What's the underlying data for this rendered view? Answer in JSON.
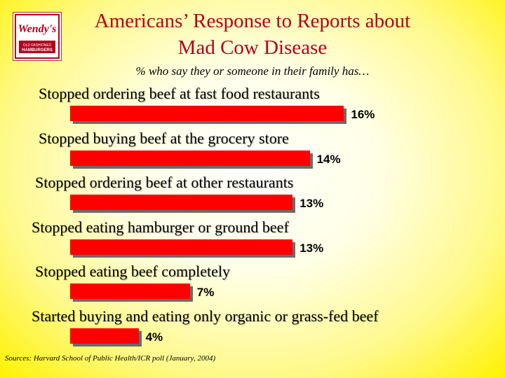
{
  "title_lines": [
    "Americans’ Response to Reports about",
    "Mad Cow Disease"
  ],
  "subtitle": "% who say they or someone in their family has…",
  "logo": {
    "brand": "Wendy's",
    "tagline": "OLD FASHIONED",
    "product": "HAMBURGERS"
  },
  "colors": {
    "bar": "#ff0000",
    "title": "#b4001e"
  },
  "chart_data": {
    "type": "bar",
    "orientation": "horizontal",
    "categories": [
      "Stopped ordering beef at fast food restaurants",
      "Stopped buying beef at the grocery store",
      "Stopped ordering beef at other restaurants",
      "Stopped eating hamburger or ground beef",
      "Stopped eating beef completely",
      "Started buying and eating only organic or grass-fed beef"
    ],
    "values": [
      16,
      14,
      13,
      13,
      7,
      4
    ],
    "value_labels": [
      "16%",
      "14%",
      "13%",
      "13%",
      "7%",
      "4%"
    ],
    "title": "Americans’ Response to Reports about Mad Cow Disease",
    "subtitle": "% who say they or someone in their family has…",
    "grid": false,
    "legend": "none"
  },
  "source": "Sources: Harvard School of Public Health/ICR poll (January, 2004)"
}
